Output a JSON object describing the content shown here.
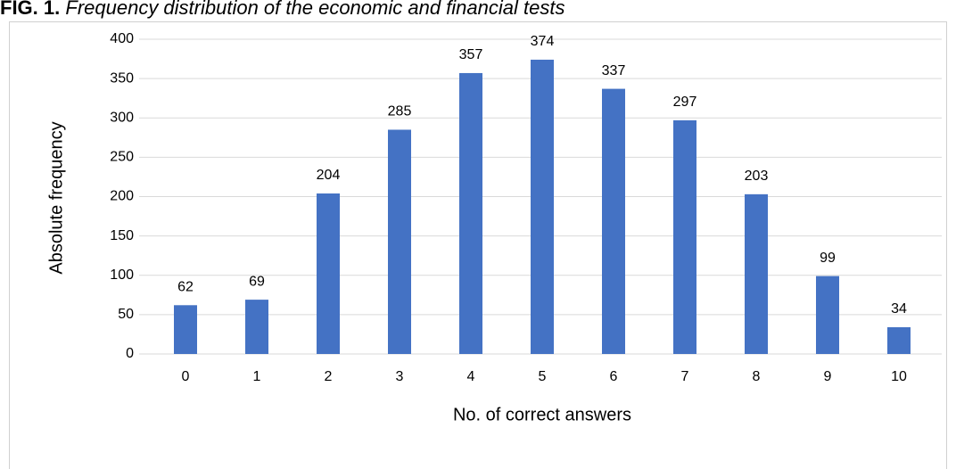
{
  "chart_data": {
    "type": "bar",
    "figure_label": "FIG. 1.",
    "title": "Frequency distribution of the economic and financial tests",
    "x_label": "No. of correct answers",
    "y_label": "Absolute frequency",
    "categories": [
      "0",
      "1",
      "2",
      "3",
      "4",
      "5",
      "6",
      "7",
      "8",
      "9",
      "10"
    ],
    "values": [
      62,
      69,
      204,
      285,
      357,
      374,
      337,
      297,
      203,
      99,
      34
    ],
    "color": "#4472c4",
    "ylim": [
      0,
      400
    ],
    "yticks": [
      0,
      50,
      100,
      150,
      200,
      250,
      300,
      350,
      400
    ],
    "grid": true,
    "data_labels": true
  }
}
